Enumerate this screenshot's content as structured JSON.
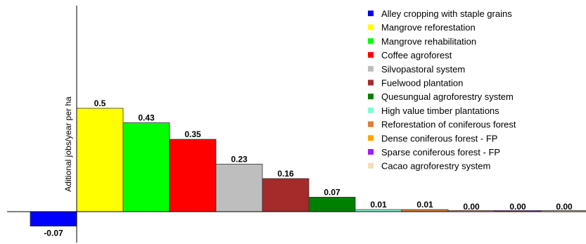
{
  "chart_data": {
    "type": "bar",
    "ylabel": "Aditional jobs/year per ha",
    "xlabel": "",
    "title": "",
    "ylim": [
      -0.1,
      0.75
    ],
    "grid": false,
    "legend_position": "top-right",
    "series": [
      {
        "name": "Alley cropping with staple grains",
        "value": -0.07,
        "label": "-0.07",
        "color": "#0000ff"
      },
      {
        "name": "Mangrove reforestation",
        "value": 0.5,
        "label": "0.5",
        "color": "#ffff00"
      },
      {
        "name": "Mangrove rehabilitation",
        "value": 0.43,
        "label": "0.43",
        "color": "#00ff00"
      },
      {
        "name": "Coffee agroforest",
        "value": 0.35,
        "label": "0.35",
        "color": "#ff0000"
      },
      {
        "name": "Silvopastoral system",
        "value": 0.23,
        "label": "0.23",
        "color": "#bebebe"
      },
      {
        "name": "Fuelwood plantation",
        "value": 0.16,
        "label": "0.16",
        "color": "#a52a2a"
      },
      {
        "name": "Quesungual agroforestry system",
        "value": 0.07,
        "label": "0.07",
        "color": "#008000"
      },
      {
        "name": "High value timber plantations",
        "value": 0.01,
        "label": "0.01",
        "color": "#7fffd4"
      },
      {
        "name": "Reforestation of coniferous forest",
        "value": 0.01,
        "label": "0.01",
        "color": "#e07b39"
      },
      {
        "name": "Dense coniferous forest - FP",
        "value": 0.0,
        "label": "0.00",
        "color": "#ffa500"
      },
      {
        "name": "Sparse coniferous forest - FP",
        "value": 0.0,
        "label": "0.00",
        "color": "#a020f0"
      },
      {
        "name": "Cacao agroforestry system",
        "value": 0.0,
        "label": "0.00",
        "color": "#f5deb3"
      }
    ]
  }
}
